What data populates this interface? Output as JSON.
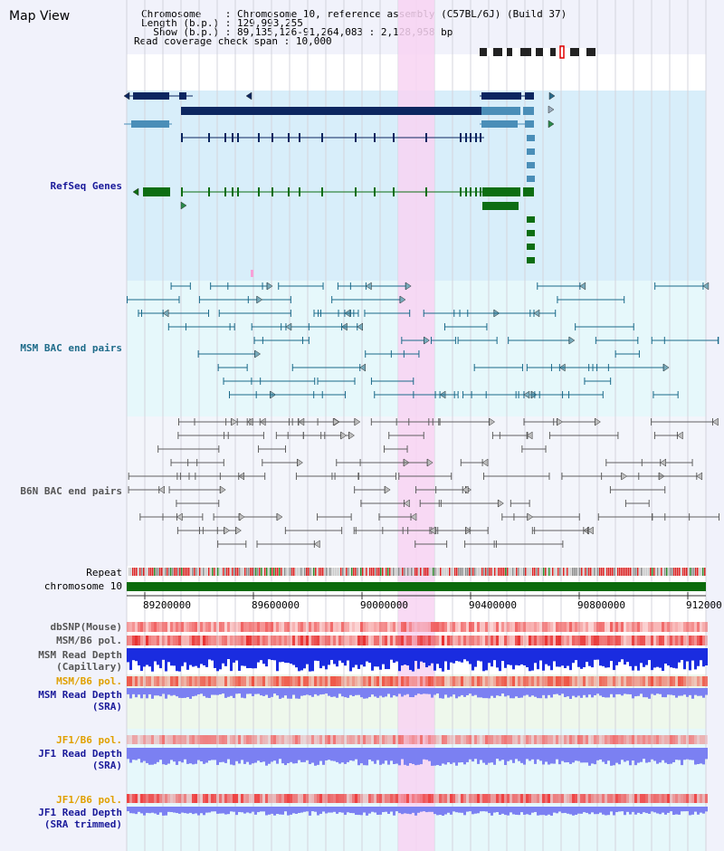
{
  "title": "Map View",
  "header": {
    "chromosome_label": "Chromosome",
    "chromosome_value": "Chromosome 10, reference assembly (C57BL/6J) (Build 37)",
    "length_label": "Length (b.p.)",
    "length_value": "129,993,255",
    "show_label": "Show (b.p.)",
    "show_value": "89,135,126-91,264,083 : 2,128,958 bp",
    "span_label": "Read coverage check span",
    "span_value": "10,000"
  },
  "tracks": {
    "refseq": "RefSeq Genes",
    "msm_bac": "MSM BAC end pairs",
    "b6n_bac": "B6N BAC end pairs",
    "repeat": "Repeat",
    "chromosome": "chromosome 10",
    "dbsnp": "dbSNP(Mouse)",
    "msm_b6_pol": "MSM/B6 pol.",
    "msm_read_depth_cap_1": "MSM Read Depth",
    "msm_read_depth_cap_2": "(Capillary)",
    "msm_b6_pol_2": "MSM/B6 pol.",
    "msm_read_depth_sra_1": "MSM Read Depth",
    "msm_read_depth_sra_2": "(SRA)",
    "jf1_b6_pol": "JF1/B6 pol.",
    "jf1_read_depth_sra_1": "JF1 Read Depth",
    "jf1_read_depth_sra_2": "(SRA)",
    "jf1_b6_pol_2": "JF1/B6 pol.",
    "jf1_read_depth_trim_1": "JF1 Read Depth",
    "jf1_read_depth_trim_2": "(SRA trimmed)"
  },
  "axis_ticks": [
    "89200000",
    "89600000",
    "90000000",
    "90400000",
    "90800000",
    "912000"
  ],
  "colors": {
    "refseq_bg": "#d8eefa",
    "msm_bg": "#e6f8fb",
    "b6n_bg": "#f3f5fb",
    "highlight": "#f8d4f2",
    "gene_navy": "#0c2660",
    "gene_steel": "#4a8eb8",
    "gene_green": "#0d6e12",
    "msm_pair": "#1b6a8a",
    "b6n_pair": "#606060",
    "chrom_bar": "#0b6b0b",
    "pol_red": "#e83030",
    "depth_blue": "#1a2ce0",
    "depth_light_blue": "#7b80f2",
    "label_navy": "#1a1a9a",
    "label_teal": "#1f6c8a",
    "label_orange": "#e0a000",
    "label_gray": "#555555"
  }
}
